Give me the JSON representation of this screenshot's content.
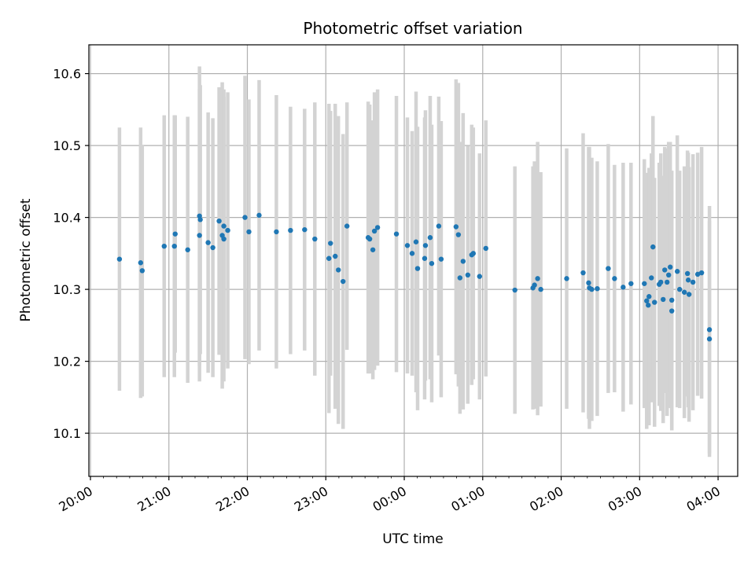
{
  "chart_data": {
    "type": "scatter",
    "title": "Photometric offset variation",
    "xlabel": "UTC time",
    "ylabel": "Photometric offset",
    "x_tick_labels": [
      "20:00",
      "21:00",
      "22:00",
      "23:00",
      "00:00",
      "01:00",
      "02:00",
      "03:00",
      "04:00"
    ],
    "y_tick_labels": [
      "10.1",
      "10.2",
      "10.3",
      "10.4",
      "10.5",
      "10.6"
    ],
    "y_ticks": [
      10.1,
      10.2,
      10.3,
      10.4,
      10.5,
      10.6
    ],
    "xlim_hours": [
      -0.02,
      8.25
    ],
    "ylim": [
      10.04,
      10.64
    ],
    "grid": true,
    "colors": {
      "points": "#1f77b4",
      "errorbars": "#d3d3d3",
      "grid": "#b0b0b0"
    },
    "points": [
      [
        0.37,
        10.342,
        0.183
      ],
      [
        0.64,
        10.337,
        0.188
      ],
      [
        0.66,
        10.326,
        0.175
      ],
      [
        0.94,
        10.36,
        0.182
      ],
      [
        1.07,
        10.36,
        0.182
      ],
      [
        1.08,
        10.377,
        0.165
      ],
      [
        1.24,
        10.355,
        0.185
      ],
      [
        1.39,
        10.375,
        0.203
      ],
      [
        1.39,
        10.402,
        0.208
      ],
      [
        1.4,
        10.397,
        0.187
      ],
      [
        1.5,
        10.365,
        0.181
      ],
      [
        1.56,
        10.358,
        0.18
      ],
      [
        1.64,
        10.395,
        0.186
      ],
      [
        1.68,
        10.375,
        0.213
      ],
      [
        1.7,
        10.37,
        0.198
      ],
      [
        1.7,
        10.388,
        0.19
      ],
      [
        1.75,
        10.382,
        0.192
      ],
      [
        1.97,
        10.4,
        0.197
      ],
      [
        2.02,
        10.38,
        0.184
      ],
      [
        2.15,
        10.403,
        0.188
      ],
      [
        2.37,
        10.38,
        0.19
      ],
      [
        2.55,
        10.382,
        0.172
      ],
      [
        2.73,
        10.383,
        0.168
      ],
      [
        2.86,
        10.37,
        0.19
      ],
      [
        3.04,
        10.343,
        0.215
      ],
      [
        3.06,
        10.364,
        0.184
      ],
      [
        3.12,
        10.346,
        0.212
      ],
      [
        3.16,
        10.327,
        0.214
      ],
      [
        3.22,
        10.311,
        0.205
      ],
      [
        3.27,
        10.388,
        0.172
      ],
      [
        3.54,
        10.372,
        0.189
      ],
      [
        3.56,
        10.37,
        0.187
      ],
      [
        3.6,
        10.355,
        0.18
      ],
      [
        3.62,
        10.381,
        0.193
      ],
      [
        3.66,
        10.386,
        0.192
      ],
      [
        3.9,
        10.377,
        0.192
      ],
      [
        4.04,
        10.361,
        0.178
      ],
      [
        4.1,
        10.35,
        0.17
      ],
      [
        4.15,
        10.366,
        0.209
      ],
      [
        4.17,
        10.329,
        0.197
      ],
      [
        4.26,
        10.343,
        0.196
      ],
      [
        4.27,
        10.361,
        0.188
      ],
      [
        4.33,
        10.372,
        0.197
      ],
      [
        4.35,
        10.336,
        0.193
      ],
      [
        4.44,
        10.388,
        0.18
      ],
      [
        4.47,
        10.342,
        0.192
      ],
      [
        4.66,
        10.387,
        0.205
      ],
      [
        4.69,
        10.376,
        0.211
      ],
      [
        4.71,
        10.316,
        0.189
      ],
      [
        4.75,
        10.339,
        0.206
      ],
      [
        4.81,
        10.32,
        0.179
      ],
      [
        4.86,
        10.348,
        0.181
      ],
      [
        4.88,
        10.35,
        0.175
      ],
      [
        4.96,
        10.318,
        0.171
      ],
      [
        5.04,
        10.357,
        0.178
      ],
      [
        5.41,
        10.299,
        0.172
      ],
      [
        5.64,
        10.302,
        0.169
      ],
      [
        5.66,
        10.306,
        0.172
      ],
      [
        5.7,
        10.315,
        0.19
      ],
      [
        5.74,
        10.3,
        0.163
      ],
      [
        6.07,
        10.315,
        0.181
      ],
      [
        6.28,
        10.323,
        0.194
      ],
      [
        6.35,
        10.309,
        0.189
      ],
      [
        6.36,
        10.302,
        0.196
      ],
      [
        6.39,
        10.3,
        0.183
      ],
      [
        6.46,
        10.301,
        0.177
      ],
      [
        6.6,
        10.329,
        0.173
      ],
      [
        6.68,
        10.315,
        0.158
      ],
      [
        6.79,
        10.303,
        0.173
      ],
      [
        6.89,
        10.308,
        0.168
      ],
      [
        7.06,
        10.308,
        0.173
      ],
      [
        7.09,
        10.284,
        0.178
      ],
      [
        7.11,
        10.278,
        0.167
      ],
      [
        7.12,
        10.29,
        0.179
      ],
      [
        7.15,
        10.316,
        0.173
      ],
      [
        7.17,
        10.359,
        0.182
      ],
      [
        7.19,
        10.282,
        0.173
      ],
      [
        7.25,
        10.307,
        0.169
      ],
      [
        7.27,
        10.31,
        0.179
      ],
      [
        7.3,
        10.286,
        0.172
      ],
      [
        7.32,
        10.327,
        0.171
      ],
      [
        7.35,
        10.31,
        0.186
      ],
      [
        7.37,
        10.32,
        0.185
      ],
      [
        7.39,
        10.331,
        0.174
      ],
      [
        7.41,
        10.285,
        0.18
      ],
      [
        7.41,
        10.27,
        0.166
      ],
      [
        7.48,
        10.325,
        0.189
      ],
      [
        7.51,
        10.3,
        0.165
      ],
      [
        7.57,
        10.296,
        0.175
      ],
      [
        7.61,
        10.322,
        0.171
      ],
      [
        7.62,
        10.313,
        0.177
      ],
      [
        7.63,
        10.293,
        0.177
      ],
      [
        7.68,
        10.31,
        0.178
      ],
      [
        7.74,
        10.321,
        0.169
      ],
      [
        7.79,
        10.323,
        0.175
      ],
      [
        7.89,
        10.244,
        0.172
      ],
      [
        7.89,
        10.231,
        0.164
      ]
    ]
  }
}
